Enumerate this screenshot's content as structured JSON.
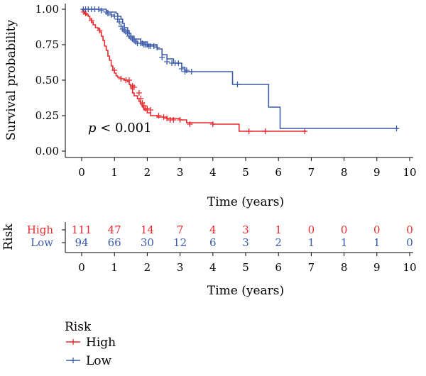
{
  "chart_data": {
    "type": "line",
    "subtype": "kaplan-meier",
    "title": "",
    "xlabel": "Time (years)",
    "ylabel": "Survival probability",
    "xlim": [
      0,
      10
    ],
    "ylim": [
      0,
      1
    ],
    "x_ticks": [
      "0",
      "1",
      "2",
      "3",
      "4",
      "5",
      "6",
      "7",
      "8",
      "9",
      "10"
    ],
    "y_ticks": [
      "0.00",
      "0.25",
      "0.50",
      "0.75",
      "1.00"
    ],
    "annotation_p": "p",
    "annotation_rest": " < 0.001",
    "legend": {
      "title": "Risk",
      "position": "bottom-left"
    },
    "series": [
      {
        "name": "High",
        "color": "#e8282b",
        "points": [
          [
            0,
            1.0
          ],
          [
            0.03,
            0.99
          ],
          [
            0.06,
            0.98
          ],
          [
            0.1,
            0.97
          ],
          [
            0.14,
            0.96
          ],
          [
            0.2,
            0.95
          ],
          [
            0.25,
            0.93
          ],
          [
            0.3,
            0.91
          ],
          [
            0.35,
            0.89
          ],
          [
            0.42,
            0.87
          ],
          [
            0.5,
            0.86
          ],
          [
            0.55,
            0.84
          ],
          [
            0.6,
            0.81
          ],
          [
            0.65,
            0.78
          ],
          [
            0.7,
            0.74
          ],
          [
            0.75,
            0.71
          ],
          [
            0.8,
            0.67
          ],
          [
            0.85,
            0.64
          ],
          [
            0.9,
            0.6
          ],
          [
            0.95,
            0.57
          ],
          [
            1.0,
            0.55
          ],
          [
            1.05,
            0.53
          ],
          [
            1.1,
            0.52
          ],
          [
            1.2,
            0.51
          ],
          [
            1.3,
            0.5
          ],
          [
            1.4,
            0.49
          ],
          [
            1.45,
            0.47
          ],
          [
            1.5,
            0.44
          ],
          [
            1.55,
            0.41
          ],
          [
            1.6,
            0.39
          ],
          [
            1.7,
            0.37
          ],
          [
            1.75,
            0.35
          ],
          [
            1.8,
            0.33
          ],
          [
            1.85,
            0.31
          ],
          [
            1.9,
            0.29
          ],
          [
            2.0,
            0.27
          ],
          [
            2.1,
            0.25
          ],
          [
            2.3,
            0.24
          ],
          [
            2.6,
            0.23
          ],
          [
            3.0,
            0.22
          ],
          [
            3.2,
            0.2
          ],
          [
            4.0,
            0.19
          ],
          [
            4.8,
            0.14
          ],
          [
            6.85,
            0.14
          ]
        ],
        "censors": [
          [
            0.07,
            0.98
          ],
          [
            0.12,
            0.97
          ],
          [
            0.3,
            0.92
          ],
          [
            0.55,
            0.85
          ],
          [
            1.0,
            0.57
          ],
          [
            1.2,
            0.51
          ],
          [
            1.35,
            0.5
          ],
          [
            1.45,
            0.5
          ],
          [
            1.55,
            0.46
          ],
          [
            1.6,
            0.45
          ],
          [
            1.75,
            0.41
          ],
          [
            1.8,
            0.37
          ],
          [
            1.85,
            0.34
          ],
          [
            1.9,
            0.32
          ],
          [
            1.95,
            0.3
          ],
          [
            2.0,
            0.3
          ],
          [
            2.1,
            0.29
          ],
          [
            2.35,
            0.25
          ],
          [
            2.5,
            0.24
          ],
          [
            2.6,
            0.23
          ],
          [
            2.7,
            0.22
          ],
          [
            2.8,
            0.22
          ],
          [
            3.0,
            0.22
          ],
          [
            3.3,
            0.19
          ],
          [
            4.0,
            0.19
          ],
          [
            5.1,
            0.14
          ],
          [
            5.6,
            0.14
          ],
          [
            6.8,
            0.14
          ]
        ]
      },
      {
        "name": "Low",
        "color": "#3a5ba9",
        "points": [
          [
            0,
            1.0
          ],
          [
            0.7,
            1.0
          ],
          [
            0.75,
            0.99
          ],
          [
            0.8,
            0.98
          ],
          [
            1.0,
            0.98
          ],
          [
            1.05,
            0.97
          ],
          [
            1.1,
            0.95
          ],
          [
            1.2,
            0.93
          ],
          [
            1.25,
            0.9
          ],
          [
            1.3,
            0.87
          ],
          [
            1.4,
            0.85
          ],
          [
            1.45,
            0.83
          ],
          [
            1.5,
            0.81
          ],
          [
            1.6,
            0.79
          ],
          [
            1.8,
            0.77
          ],
          [
            2.0,
            0.75
          ],
          [
            2.3,
            0.72
          ],
          [
            2.45,
            0.68
          ],
          [
            2.6,
            0.65
          ],
          [
            2.8,
            0.62
          ],
          [
            3.05,
            0.59
          ],
          [
            3.15,
            0.56
          ],
          [
            4.6,
            0.47
          ],
          [
            5.6,
            0.47
          ],
          [
            5.7,
            0.31
          ],
          [
            5.95,
            0.31
          ],
          [
            6.05,
            0.16
          ],
          [
            9.65,
            0.16
          ]
        ],
        "censors": [
          [
            0.05,
            1.0
          ],
          [
            0.12,
            1.0
          ],
          [
            0.2,
            1.0
          ],
          [
            0.3,
            1.0
          ],
          [
            0.4,
            1.0
          ],
          [
            0.52,
            1.0
          ],
          [
            0.6,
            0.99
          ],
          [
            0.75,
            0.98
          ],
          [
            0.8,
            0.97
          ],
          [
            0.9,
            0.96
          ],
          [
            1.0,
            0.95
          ],
          [
            1.1,
            0.93
          ],
          [
            1.15,
            0.91
          ],
          [
            1.2,
            0.88
          ],
          [
            1.25,
            0.86
          ],
          [
            1.3,
            0.85
          ],
          [
            1.35,
            0.84
          ],
          [
            1.4,
            0.83
          ],
          [
            1.45,
            0.81
          ],
          [
            1.5,
            0.8
          ],
          [
            1.55,
            0.79
          ],
          [
            1.6,
            0.78
          ],
          [
            1.65,
            0.77
          ],
          [
            1.7,
            0.76
          ],
          [
            1.8,
            0.76
          ],
          [
            1.85,
            0.76
          ],
          [
            1.9,
            0.75
          ],
          [
            1.95,
            0.75
          ],
          [
            2.0,
            0.75
          ],
          [
            2.05,
            0.74
          ],
          [
            2.1,
            0.74
          ],
          [
            2.2,
            0.74
          ],
          [
            2.3,
            0.73
          ],
          [
            2.45,
            0.66
          ],
          [
            2.6,
            0.63
          ],
          [
            2.75,
            0.62
          ],
          [
            2.85,
            0.62
          ],
          [
            2.95,
            0.62
          ],
          [
            3.05,
            0.58
          ],
          [
            3.15,
            0.56
          ],
          [
            3.2,
            0.57
          ],
          [
            3.35,
            0.56
          ],
          [
            4.75,
            0.47
          ],
          [
            9.6,
            0.16
          ]
        ]
      }
    ],
    "risk_table": {
      "title": "Risk",
      "rows": [
        {
          "name": "High",
          "color": "#e8282b",
          "counts": [
            "111",
            "47",
            "14",
            "7",
            "4",
            "3",
            "1",
            "0",
            "0",
            "0",
            "0"
          ]
        },
        {
          "name": "Low",
          "color": "#3a5ba9",
          "counts": [
            "94",
            "66",
            "30",
            "12",
            "6",
            "3",
            "2",
            "1",
            "1",
            "1",
            "0"
          ]
        }
      ],
      "xlabel": "Time (years)"
    }
  }
}
